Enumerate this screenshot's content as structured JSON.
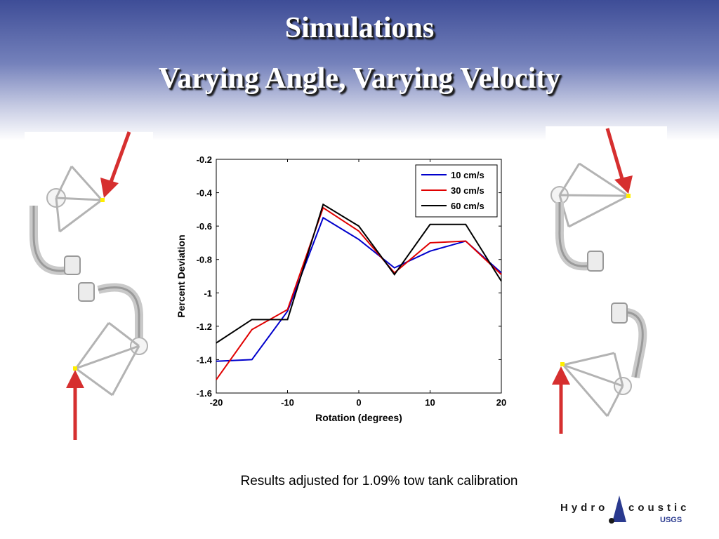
{
  "slide": {
    "title_line1": "Simulations",
    "title_line2": "Varying Angle, Varying Velocity",
    "caption": "Results adjusted for 1.09% tow tank calibration",
    "logo_text_left": "Hydro",
    "logo_text_right": "coustics",
    "logo_sub": "USGS"
  },
  "colors": {
    "arrow": "#d62f2f",
    "probe": "#b3b3b3",
    "sensor_dot": "#ffee00"
  },
  "chart_data": {
    "type": "line",
    "title": "",
    "xlabel": "Rotation (degrees)",
    "ylabel": "Percent Deviation",
    "xlim": [
      -20,
      20
    ],
    "ylim": [
      -1.6,
      -0.2
    ],
    "xticks": [
      -20,
      -10,
      0,
      10,
      20
    ],
    "yticks": [
      -0.2,
      -0.4,
      -0.6,
      -0.8,
      -1,
      -1.2,
      -1.4,
      -1.6
    ],
    "x": [
      -20,
      -15,
      -10,
      -5,
      0,
      5,
      10,
      15,
      20
    ],
    "legend_position": "top-right",
    "grid": false,
    "series": [
      {
        "name": "10 cm/s",
        "color": "#0000cc",
        "values": [
          -1.41,
          -1.4,
          -1.11,
          -0.55,
          -0.68,
          -0.85,
          -0.75,
          -0.69,
          -0.88
        ]
      },
      {
        "name": "30 cm/s",
        "color": "#e00000",
        "values": [
          -1.52,
          -1.22,
          -1.1,
          -0.49,
          -0.63,
          -0.88,
          -0.7,
          -0.69,
          -0.89
        ]
      },
      {
        "name": "60 cm/s",
        "color": "#000000",
        "values": [
          -1.3,
          -1.16,
          -1.16,
          -0.47,
          -0.6,
          -0.89,
          -0.59,
          -0.59,
          -0.93
        ]
      }
    ]
  }
}
